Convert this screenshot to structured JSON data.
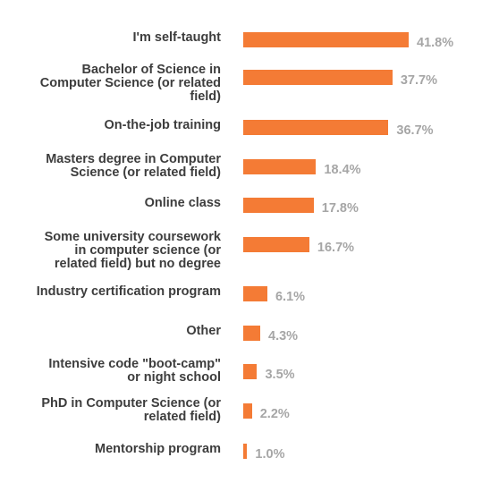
{
  "chart_data": {
    "type": "bar",
    "orientation": "horizontal",
    "categories": [
      "I'm self-taught",
      "Bachelor of Science in\nComputer Science (or related\nfield)",
      "On-the-job training",
      "Masters degree in Computer\nScience (or related field)",
      "Online class",
      "Some university coursework\nin computer science (or\nrelated field) but no degree",
      "Industry certification program",
      "Other",
      "Intensive code \"boot-camp\"\nor night school",
      "PhD in Computer Science (or\nrelated field)",
      "Mentorship program"
    ],
    "values": [
      41.8,
      37.7,
      36.7,
      18.4,
      17.8,
      16.7,
      6.1,
      4.3,
      3.5,
      2.2,
      1.0
    ],
    "value_labels": [
      "41.8%",
      "37.7%",
      "36.7%",
      "18.4%",
      "17.8%",
      "16.7%",
      "6.1%",
      "4.3%",
      "3.5%",
      "2.2%",
      "1.0%"
    ],
    "unit": "%",
    "xlim": [
      0,
      41.8
    ],
    "grid": false,
    "legend": "none",
    "colors": {
      "bar": "#f47b35",
      "category_text": "#3d3d3d",
      "value_text": "#a6a6a6"
    }
  }
}
